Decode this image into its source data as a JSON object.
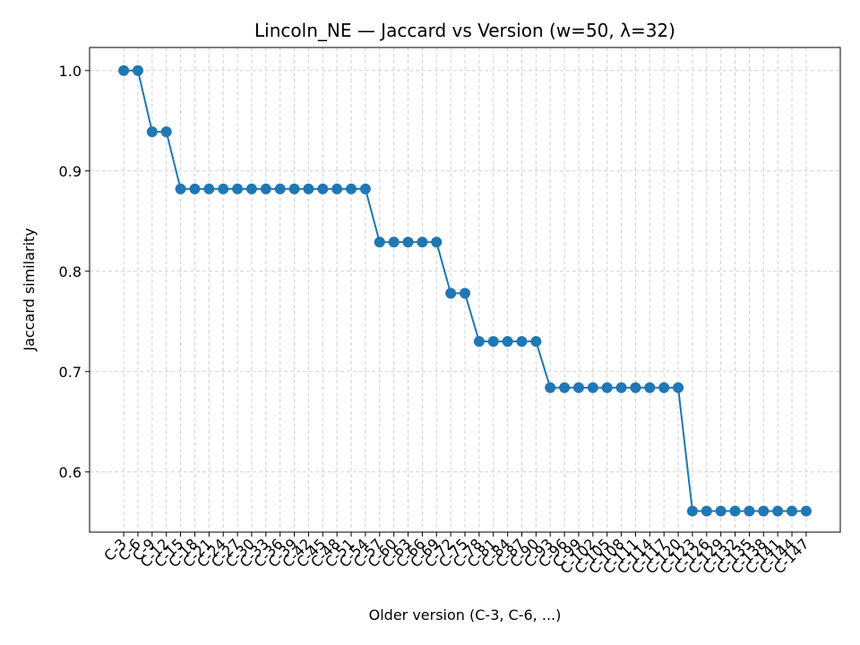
{
  "chart_data": {
    "type": "line",
    "title": "Lincoln_NE — Jaccard vs Version (w=50, λ=32)",
    "x_label": "Older version (C-3, C-6, ...)",
    "y_label": "Jaccard similarity",
    "categories": [
      "C-3",
      "C-6",
      "C-9",
      "C-12",
      "C-15",
      "C-18",
      "C-21",
      "C-24",
      "C-27",
      "C-30",
      "C-33",
      "C-36",
      "C-39",
      "C-42",
      "C-45",
      "C-48",
      "C-51",
      "C-54",
      "C-57",
      "C-60",
      "C-63",
      "C-66",
      "C-69",
      "C-72",
      "C-75",
      "C-78",
      "C-81",
      "C-84",
      "C-87",
      "C-90",
      "C-93",
      "C-96",
      "C-99",
      "C-102",
      "C-105",
      "C-108",
      "C-111",
      "C-114",
      "C-117",
      "C-120",
      "C-123",
      "C-126",
      "C-129",
      "C-132",
      "C-135",
      "C-138",
      "C-141",
      "C-144",
      "C-147"
    ],
    "series": [
      {
        "name": "Jaccard",
        "color": "#1f77b4",
        "values": [
          1.0,
          1.0,
          0.939,
          0.939,
          0.882,
          0.882,
          0.882,
          0.882,
          0.882,
          0.882,
          0.882,
          0.882,
          0.882,
          0.882,
          0.882,
          0.882,
          0.882,
          0.882,
          0.829,
          0.829,
          0.829,
          0.829,
          0.829,
          0.778,
          0.778,
          0.73,
          0.73,
          0.73,
          0.73,
          0.73,
          0.684,
          0.684,
          0.684,
          0.684,
          0.684,
          0.684,
          0.684,
          0.684,
          0.684,
          0.684,
          0.561,
          0.561,
          0.561,
          0.561,
          0.561,
          0.561,
          0.561,
          0.561,
          0.561
        ]
      }
    ],
    "ylim": [
      0.54,
      1.023
    ],
    "yticks": [
      {
        "value": 0.6,
        "label": "0.6"
      },
      {
        "value": 0.7,
        "label": "0.7"
      },
      {
        "value": 0.8,
        "label": "0.8"
      },
      {
        "value": 0.9,
        "label": "0.9"
      },
      {
        "value": 1.0,
        "label": "1.0"
      }
    ],
    "grid": true
  }
}
